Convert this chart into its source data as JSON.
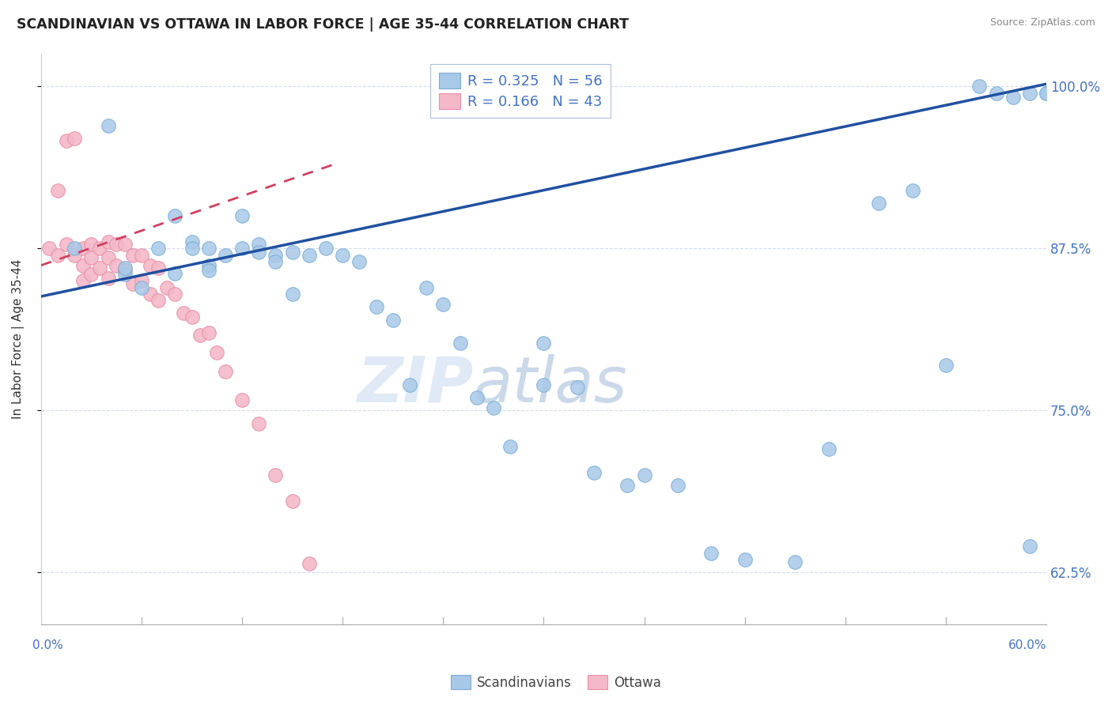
{
  "title": "SCANDINAVIAN VS OTTAWA IN LABOR FORCE | AGE 35-44 CORRELATION CHART",
  "source": "Source: ZipAtlas.com",
  "ylabel": "In Labor Force | Age 35-44",
  "xmin": 0.0,
  "xmax": 0.6,
  "ymin": 0.585,
  "ymax": 1.025,
  "legend1_label": "R = 0.325   N = 56",
  "legend2_label": "R = 0.166   N = 43",
  "watermark_zip": "ZIP",
  "watermark_atlas": "atlas",
  "blue_color": "#A8C8E8",
  "blue_edge_color": "#7AADD4",
  "pink_color": "#F4B8C8",
  "pink_edge_color": "#E890A8",
  "blue_line_color": "#2050A0",
  "pink_line_color": "#D04060",
  "legend_text_color": "#4472C4",
  "axis_color": "#4472C4",
  "grid_color": "#C8D4E8",
  "ytick_positions": [
    0.625,
    0.75,
    0.875,
    1.0
  ],
  "ytick_labels": [
    "62.5%",
    "75.0%",
    "87.5%",
    "100.0%"
  ],
  "blue_line_x": [
    0.0,
    0.6
  ],
  "blue_line_y": [
    0.838,
    1.002
  ],
  "pink_line_x": [
    0.0,
    0.175
  ],
  "pink_line_y": [
    0.862,
    0.94
  ],
  "scandinavians_x": [
    0.02,
    0.04,
    0.05,
    0.05,
    0.06,
    0.07,
    0.08,
    0.08,
    0.09,
    0.09,
    0.1,
    0.1,
    0.1,
    0.11,
    0.12,
    0.12,
    0.13,
    0.13,
    0.14,
    0.14,
    0.15,
    0.15,
    0.16,
    0.17,
    0.18,
    0.19,
    0.2,
    0.21,
    0.22,
    0.23,
    0.24,
    0.25,
    0.26,
    0.27,
    0.28,
    0.3,
    0.3,
    0.32,
    0.33,
    0.35,
    0.36,
    0.38,
    0.4,
    0.42,
    0.45,
    0.47,
    0.5,
    0.52,
    0.54,
    0.56,
    0.57,
    0.58,
    0.59,
    0.59,
    0.6,
    0.6
  ],
  "scandinavians_y": [
    0.875,
    0.97,
    0.855,
    0.86,
    0.845,
    0.875,
    0.9,
    0.856,
    0.88,
    0.875,
    0.875,
    0.862,
    0.858,
    0.87,
    0.9,
    0.875,
    0.878,
    0.872,
    0.87,
    0.865,
    0.84,
    0.872,
    0.87,
    0.875,
    0.87,
    0.865,
    0.83,
    0.82,
    0.77,
    0.845,
    0.832,
    0.802,
    0.76,
    0.752,
    0.722,
    0.802,
    0.77,
    0.768,
    0.702,
    0.692,
    0.7,
    0.692,
    0.64,
    0.635,
    0.633,
    0.72,
    0.91,
    0.92,
    0.785,
    1.0,
    0.995,
    0.992,
    0.995,
    0.645,
    0.995,
    0.995
  ],
  "ottawa_x": [
    0.005,
    0.01,
    0.01,
    0.015,
    0.015,
    0.02,
    0.02,
    0.025,
    0.025,
    0.025,
    0.03,
    0.03,
    0.03,
    0.035,
    0.035,
    0.04,
    0.04,
    0.04,
    0.045,
    0.045,
    0.05,
    0.05,
    0.055,
    0.055,
    0.06,
    0.06,
    0.065,
    0.065,
    0.07,
    0.07,
    0.075,
    0.08,
    0.085,
    0.09,
    0.095,
    0.1,
    0.105,
    0.11,
    0.12,
    0.13,
    0.14,
    0.15,
    0.16
  ],
  "ottawa_y": [
    0.875,
    0.92,
    0.87,
    0.958,
    0.878,
    0.96,
    0.87,
    0.875,
    0.862,
    0.85,
    0.878,
    0.868,
    0.855,
    0.875,
    0.86,
    0.88,
    0.868,
    0.852,
    0.878,
    0.862,
    0.878,
    0.858,
    0.87,
    0.848,
    0.87,
    0.85,
    0.862,
    0.84,
    0.86,
    0.835,
    0.845,
    0.84,
    0.825,
    0.822,
    0.808,
    0.81,
    0.795,
    0.78,
    0.758,
    0.74,
    0.7,
    0.68,
    0.632
  ]
}
